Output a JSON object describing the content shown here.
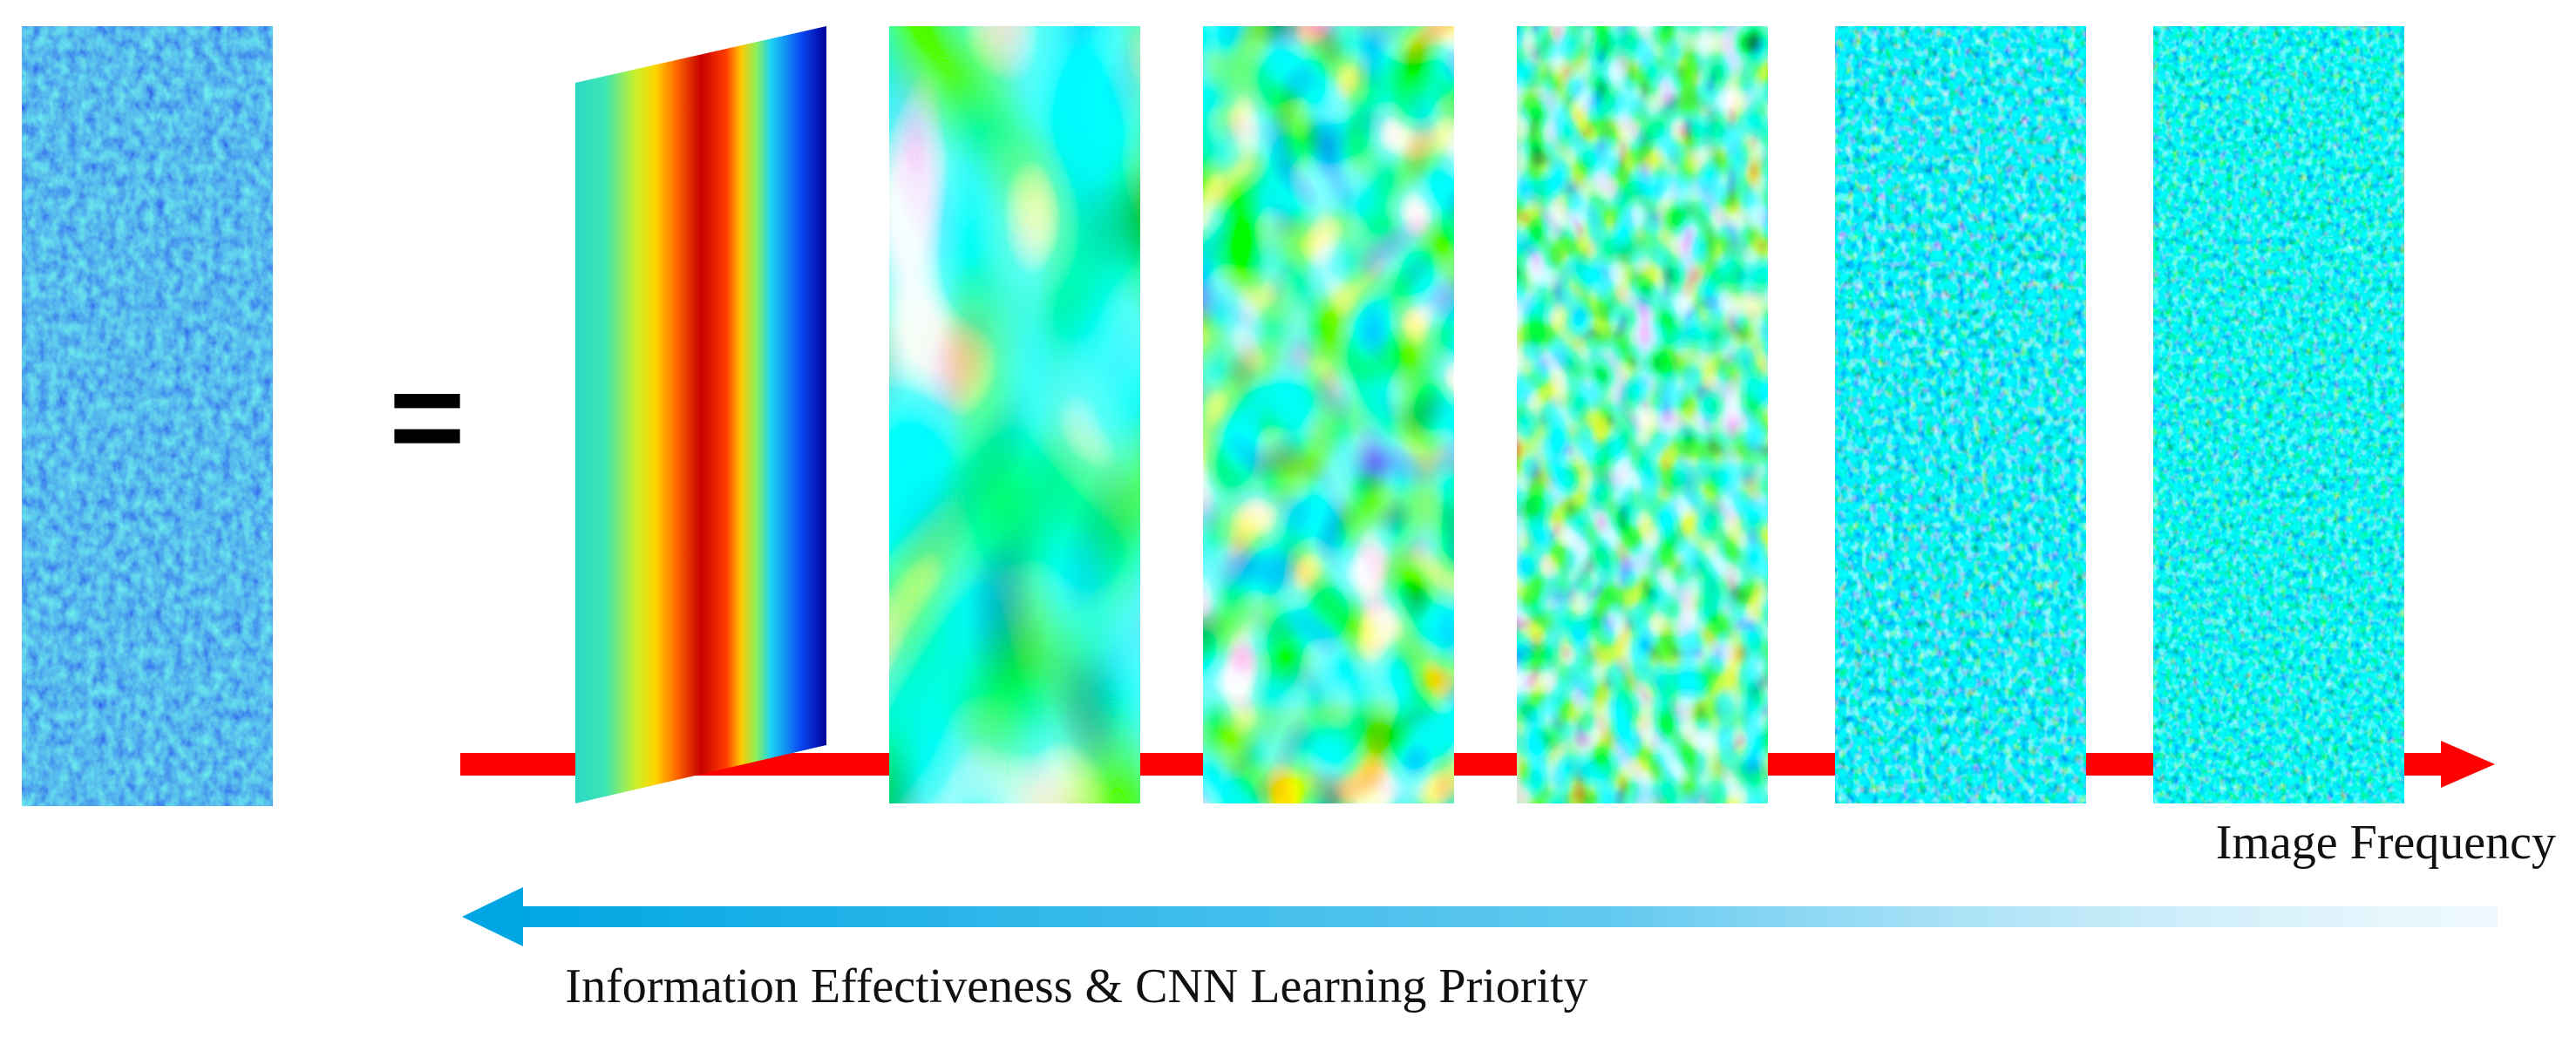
{
  "equals_symbol": "=",
  "x_axis_label": "Image Frequency",
  "reverse_axis_label": "Information Effectiveness & CNN Learning Priority",
  "colors": {
    "frequency_arrow": "#ff0000",
    "priority_arrow": "#00a6e3",
    "colormap": "jet"
  },
  "panels": [
    {
      "role": "original-image",
      "pattern": "fine-noise"
    },
    {
      "role": "frequency-component-1",
      "pattern": "single-vertical-band"
    },
    {
      "role": "frequency-component-2",
      "pattern": "large-blobs"
    },
    {
      "role": "frequency-component-3",
      "pattern": "medium-blobs"
    },
    {
      "role": "frequency-component-4",
      "pattern": "small-blobs"
    },
    {
      "role": "frequency-component-5",
      "pattern": "fine-noise"
    },
    {
      "role": "frequency-component-6",
      "pattern": "fine-noise"
    }
  ]
}
